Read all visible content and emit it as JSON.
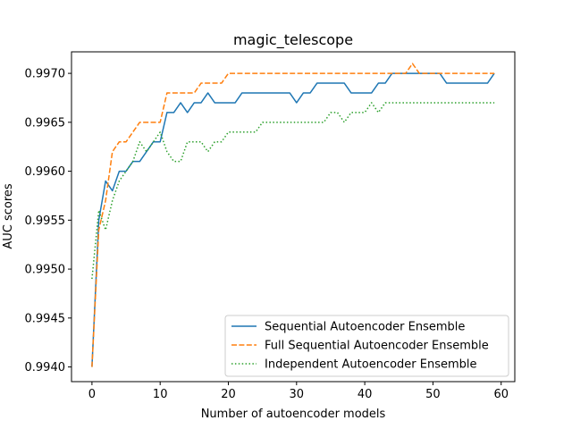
{
  "chart_data": {
    "type": "line",
    "title": "magic_telescope",
    "xlabel": "Number of autoencoder models",
    "ylabel": "AUC scores",
    "xlim": [
      -3,
      62
    ],
    "ylim": [
      0.99385,
      0.99722
    ],
    "xticks": [
      0,
      10,
      20,
      30,
      40,
      50,
      60
    ],
    "xtick_labels": [
      "0",
      "10",
      "20",
      "30",
      "40",
      "50",
      "60"
    ],
    "yticks": [
      0.994,
      0.9945,
      0.995,
      0.9955,
      0.996,
      0.9965,
      0.997
    ],
    "ytick_labels": [
      "0.9940",
      "0.9945",
      "0.9950",
      "0.9955",
      "0.9960",
      "0.9965",
      "0.9970"
    ],
    "grid": false,
    "legend_position": "lower-right",
    "x": [
      0,
      1,
      2,
      3,
      4,
      5,
      6,
      7,
      8,
      9,
      10,
      11,
      12,
      13,
      14,
      15,
      16,
      17,
      18,
      19,
      20,
      21,
      22,
      23,
      24,
      25,
      26,
      27,
      28,
      29,
      30,
      31,
      32,
      33,
      34,
      35,
      36,
      37,
      38,
      39,
      40,
      41,
      42,
      43,
      44,
      45,
      46,
      47,
      48,
      49,
      50,
      51,
      52,
      53,
      54,
      55,
      56,
      57,
      58,
      59
    ],
    "series": [
      {
        "name": "Sequential Autoencoder Ensemble",
        "color": "#1f77b4",
        "dash": "solid",
        "values": [
          0.994,
          0.9955,
          0.9959,
          0.9958,
          0.996,
          0.996,
          0.9961,
          0.9961,
          0.9962,
          0.9963,
          0.9963,
          0.9966,
          0.9966,
          0.9967,
          0.9966,
          0.9967,
          0.9967,
          0.9968,
          0.9967,
          0.9967,
          0.9967,
          0.9967,
          0.9968,
          0.9968,
          0.9968,
          0.9968,
          0.9968,
          0.9968,
          0.9968,
          0.9968,
          0.9967,
          0.9968,
          0.9968,
          0.9969,
          0.9969,
          0.9969,
          0.9969,
          0.9969,
          0.9968,
          0.9968,
          0.9968,
          0.9968,
          0.9969,
          0.9969,
          0.997,
          0.997,
          0.997,
          0.997,
          0.997,
          0.997,
          0.997,
          0.997,
          0.9969,
          0.9969,
          0.9969,
          0.9969,
          0.9969,
          0.9969,
          0.9969,
          0.997
        ]
      },
      {
        "name": "Full Sequential Autoencoder Ensemble",
        "color": "#ff7f0e",
        "dash": "dashed",
        "values": [
          0.994,
          0.9954,
          0.9957,
          0.9962,
          0.9963,
          0.9963,
          0.9964,
          0.9965,
          0.9965,
          0.9965,
          0.9965,
          0.9968,
          0.9968,
          0.9968,
          0.9968,
          0.9968,
          0.9969,
          0.9969,
          0.9969,
          0.9969,
          0.997,
          0.997,
          0.997,
          0.997,
          0.997,
          0.997,
          0.997,
          0.997,
          0.997,
          0.997,
          0.997,
          0.997,
          0.997,
          0.997,
          0.997,
          0.997,
          0.997,
          0.997,
          0.997,
          0.997,
          0.997,
          0.997,
          0.997,
          0.997,
          0.997,
          0.997,
          0.997,
          0.9971,
          0.997,
          0.997,
          0.997,
          0.997,
          0.997,
          0.997,
          0.997,
          0.997,
          0.997,
          0.997,
          0.997,
          0.997
        ]
      },
      {
        "name": "Independent Autoencoder Ensemble",
        "color": "#2ca02c",
        "dash": "dotted",
        "values": [
          0.9949,
          0.9956,
          0.9954,
          0.9957,
          0.9959,
          0.996,
          0.9961,
          0.9963,
          0.9962,
          0.9963,
          0.9964,
          0.9962,
          0.9961,
          0.9961,
          0.9963,
          0.9963,
          0.9963,
          0.9962,
          0.9963,
          0.9963,
          0.9964,
          0.9964,
          0.9964,
          0.9964,
          0.9964,
          0.9965,
          0.9965,
          0.9965,
          0.9965,
          0.9965,
          0.9965,
          0.9965,
          0.9965,
          0.9965,
          0.9965,
          0.9966,
          0.9966,
          0.9965,
          0.9966,
          0.9966,
          0.9966,
          0.9967,
          0.9966,
          0.9967,
          0.9967,
          0.9967,
          0.9967,
          0.9967,
          0.9967,
          0.9967,
          0.9967,
          0.9967,
          0.9967,
          0.9967,
          0.9967,
          0.9967,
          0.9967,
          0.9967,
          0.9967,
          0.9967
        ]
      }
    ]
  }
}
